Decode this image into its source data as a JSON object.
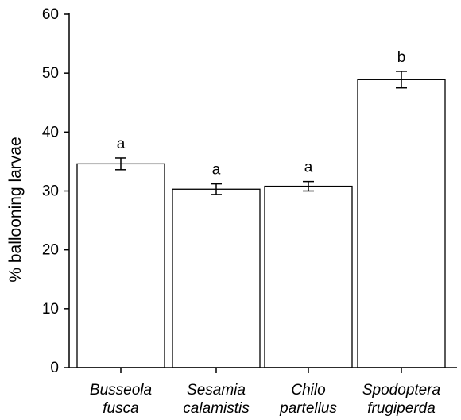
{
  "chart_data": {
    "type": "bar",
    "title": "",
    "xlabel": "",
    "ylabel": "% ballooning larvae",
    "ylim": [
      0,
      60
    ],
    "yticks": [
      0,
      10,
      20,
      30,
      40,
      50,
      60
    ],
    "grid": false,
    "legend": "none",
    "categories": [
      [
        "Busseola",
        "fusca"
      ],
      [
        "Sesamia",
        "calamistis"
      ],
      [
        "Chilo",
        "partellus"
      ],
      [
        "Spodoptera",
        "frugiperda"
      ]
    ],
    "values": [
      34.6,
      30.3,
      30.8,
      48.9
    ],
    "errors": [
      1.0,
      0.9,
      0.8,
      1.4
    ],
    "significance": [
      "a",
      "a",
      "a",
      "b"
    ],
    "bar_fill": "#ffffff",
    "bar_stroke": "#000000"
  }
}
